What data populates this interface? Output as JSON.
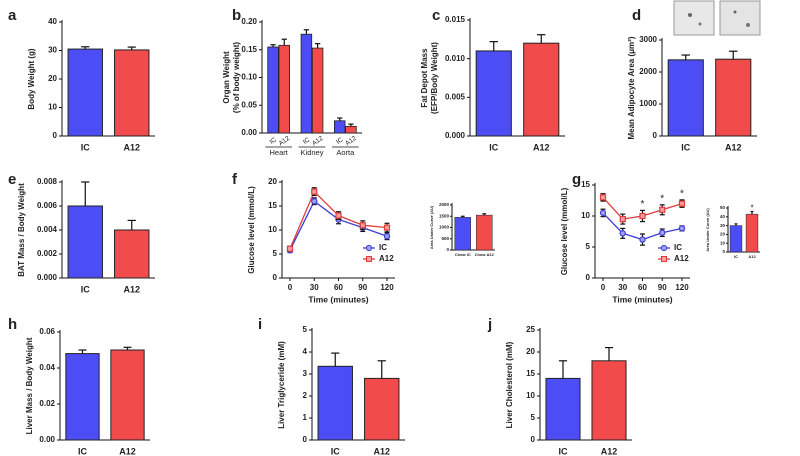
{
  "chart_data": [
    {
      "type": "bar",
      "panel": "a",
      "ylabel": [
        "Body Weight (g)"
      ],
      "categories": [
        "IC",
        "A12"
      ],
      "values": [
        30.5,
        30.2
      ],
      "errors": [
        0.8,
        1.0
      ],
      "colors": [
        "#4d4df5",
        "#f24b4b"
      ],
      "ylim": [
        0,
        40
      ],
      "yticks": [
        0,
        10,
        20,
        30,
        40
      ]
    },
    {
      "type": "bar",
      "panel": "b",
      "ylabel": [
        "Organ Weight",
        "(% of body weight)"
      ],
      "groups": [
        "Heart",
        "Kidney",
        "Aorta"
      ],
      "series": [
        {
          "name": "IC",
          "color": "#4d4df5",
          "values": [
            0.155,
            0.178,
            0.022
          ],
          "errors": [
            0.004,
            0.008,
            0.005
          ]
        },
        {
          "name": "A12",
          "color": "#f24b4b",
          "values": [
            0.158,
            0.153,
            0.012
          ],
          "errors": [
            0.011,
            0.008,
            0.004
          ]
        }
      ],
      "ylim": [
        0,
        0.2
      ],
      "yticks": [
        {
          "value": 0,
          "label": "0.00"
        },
        0.05,
        {
          "value": 0.1,
          "label": "0.10"
        },
        0.15,
        {
          "value": 0.2,
          "label": "0.20"
        }
      ]
    },
    {
      "type": "bar",
      "panel": "c",
      "ylabel": [
        "Fat Depot Mass",
        "(EFP/Body Weight)"
      ],
      "categories": [
        "IC",
        "A12"
      ],
      "values": [
        0.011,
        0.012
      ],
      "errors": [
        0.0012,
        0.0011
      ],
      "colors": [
        "#4d4df5",
        "#f24b4b"
      ],
      "ylim": [
        0,
        0.015
      ],
      "yticks": [
        {
          "value": 0,
          "label": "0.000"
        },
        0.005,
        {
          "value": 0.01,
          "label": "0.010"
        },
        0.015
      ]
    },
    {
      "type": "bar",
      "panel": "d",
      "ylabel": [
        "Mean Adipocyte Area (μm²)"
      ],
      "categories": [
        "IC",
        "A12"
      ],
      "values": [
        2380,
        2400
      ],
      "errors": [
        150,
        250
      ],
      "colors": [
        "#4d4df5",
        "#f24b4b"
      ],
      "ylim": [
        0,
        3000
      ],
      "yticks": [
        0,
        1000,
        2000,
        3000
      ]
    },
    {
      "type": "bar",
      "panel": "e",
      "ylabel": [
        "BAT Mass / Body Weight"
      ],
      "categories": [
        "IC",
        "A12"
      ],
      "values": [
        0.006,
        0.004
      ],
      "errors": [
        0.002,
        0.0008
      ],
      "colors": [
        "#4d4df5",
        "#f24b4b"
      ],
      "ylim": [
        0,
        0.008
      ],
      "yticks": [
        {
          "value": 0,
          "label": "0.000"
        },
        0.002,
        0.004,
        0.006,
        0.008
      ]
    },
    {
      "type": "line",
      "panel": "f",
      "ylabel": [
        "Glucose level (mmol/L)"
      ],
      "xlabel": "Time (minutes)",
      "x": [
        0,
        30,
        60,
        90,
        120
      ],
      "series": [
        {
          "name": "IC",
          "color": "#3b3bd6",
          "marker": "circle",
          "values": [
            5.8,
            16,
            12.2,
            10.5,
            8.7
          ],
          "errors": [
            0.5,
            0.7,
            0.9,
            0.8,
            0.7
          ]
        },
        {
          "name": "A12",
          "color": "#e03c3c",
          "marker": "square",
          "values": [
            6.1,
            18,
            13,
            11,
            10.5
          ],
          "errors": [
            0.5,
            0.8,
            0.8,
            0.9,
            0.9
          ]
        }
      ],
      "xlim": [
        0,
        120
      ],
      "xticks": [
        0,
        30,
        60,
        90,
        120
      ],
      "ylim": [
        0,
        20
      ],
      "yticks": [
        0,
        5,
        10,
        15,
        20
      ],
      "legend": "lower right"
    },
    {
      "type": "bar",
      "ylabel": [
        "Area Under Curve (AU)"
      ],
      "categories": [
        "Chow IC",
        "Chow A12"
      ],
      "values": [
        1450,
        1550
      ],
      "errors": [
        50,
        60
      ],
      "colors": [
        "#4d4df5",
        "#f24b4b"
      ],
      "ylim": [
        0,
        2000
      ],
      "yticks": [
        0,
        500,
        1000,
        1500,
        2000
      ]
    },
    {
      "type": "line",
      "panel": "g",
      "ylabel": [
        "Glucose level (mmol/L)"
      ],
      "xlabel": "Time (minutes)",
      "x": [
        0,
        30,
        60,
        90,
        120
      ],
      "series": [
        {
          "name": "IC",
          "color": "#3b3bd6",
          "marker": "circle",
          "values": [
            10.5,
            7.2,
            6.2,
            7.3,
            8
          ],
          "errors": [
            0.6,
            0.8,
            0.9,
            0.6,
            0.4
          ]
        },
        {
          "name": "A12",
          "color": "#e03c3c",
          "marker": "square",
          "values": [
            13,
            9.5,
            10,
            11,
            12
          ],
          "errors": [
            0.6,
            0.8,
            0.9,
            0.8,
            0.6
          ]
        }
      ],
      "xlim": [
        0,
        120
      ],
      "xticks": [
        0,
        30,
        60,
        90,
        120
      ],
      "ylim": [
        0,
        15
      ],
      "yticks": [
        0,
        5,
        10,
        15
      ],
      "legend": "lower right",
      "annotations": [
        {
          "x": 60,
          "text": "*"
        },
        {
          "x": 90,
          "text": "*"
        },
        {
          "x": 120,
          "text": "*"
        }
      ]
    },
    {
      "type": "bar",
      "ylabel": [
        "Area Under Curve (AU)"
      ],
      "categories": [
        "IC",
        "A12"
      ],
      "values": [
        30,
        43
      ],
      "errors": [
        2,
        3
      ],
      "colors": [
        "#4d4df5",
        "#f24b4b"
      ],
      "ylim": [
        0,
        50
      ],
      "yticks": [
        0,
        10,
        20,
        30,
        40,
        50
      ],
      "annotations": [
        {
          "category": "A12",
          "text": "*"
        }
      ]
    },
    {
      "type": "bar",
      "panel": "h",
      "ylabel": [
        "Liver Mass / Body Weight"
      ],
      "categories": [
        "IC",
        "A12"
      ],
      "values": [
        0.048,
        0.05
      ],
      "errors": [
        0.002,
        0.0015
      ],
      "colors": [
        "#4d4df5",
        "#f24b4b"
      ],
      "ylim": [
        0,
        0.06
      ],
      "yticks": [
        {
          "value": 0,
          "label": "0.00"
        },
        0.02,
        0.04,
        0.06
      ]
    },
    {
      "type": "bar",
      "panel": "i",
      "ylabel": [
        "Liver Triglyceride (mM)"
      ],
      "categories": [
        "IC",
        "A12"
      ],
      "values": [
        3.35,
        2.8
      ],
      "errors": [
        0.6,
        0.8
      ],
      "colors": [
        "#4d4df5",
        "#f24b4b"
      ],
      "ylim": [
        0,
        5
      ],
      "yticks": [
        0,
        1,
        2,
        3,
        4,
        5
      ]
    },
    {
      "type": "bar",
      "panel": "j",
      "ylabel": [
        "Liver Cholesterol (mM)"
      ],
      "categories": [
        "IC",
        "A12"
      ],
      "values": [
        14,
        18
      ],
      "errors": [
        4,
        3
      ],
      "colors": [
        "#4d4df5",
        "#f24b4b"
      ],
      "ylim": [
        0,
        25
      ],
      "yticks": [
        0,
        5,
        10,
        15,
        20,
        25
      ]
    }
  ]
}
